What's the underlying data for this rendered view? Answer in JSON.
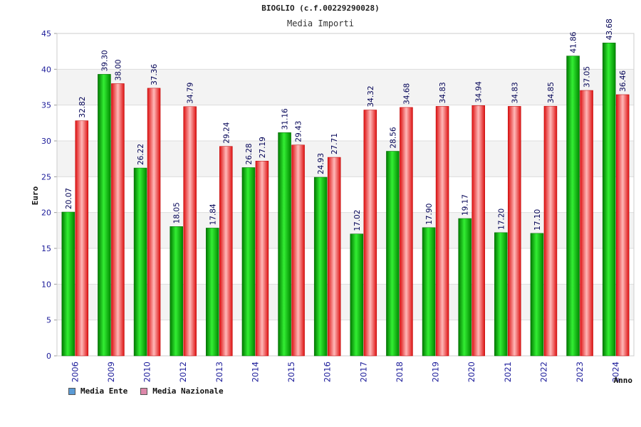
{
  "page_title": "BIOGLIO (c.f.00229290028)",
  "chart_data": {
    "type": "bar",
    "title": "Media Importi",
    "xlabel": "Anno",
    "ylabel": "Euro",
    "ylim": [
      0,
      45
    ],
    "yticks": [
      0,
      5,
      10,
      15,
      20,
      25,
      30,
      35,
      40,
      45
    ],
    "grid": true,
    "legend_position": "bottom-left",
    "categories": [
      "2006",
      "2009",
      "2010",
      "2012",
      "2013",
      "2014",
      "2015",
      "2016",
      "2017",
      "2018",
      "2019",
      "2020",
      "2021",
      "2022",
      "2023",
      "2024"
    ],
    "series": [
      {
        "name": "Media Ente",
        "color": "#00cc00",
        "legend_color": "#5b9bd5",
        "values": [
          20.07,
          39.3,
          26.22,
          18.05,
          17.84,
          26.28,
          31.16,
          24.93,
          17.02,
          28.56,
          17.9,
          19.17,
          17.2,
          17.1,
          41.86,
          43.68
        ],
        "labels": [
          "20.07",
          "39.30",
          "26.22",
          "18.05",
          "17.84",
          "26.28",
          "31.16",
          "24.93",
          "17.02",
          "28.56",
          "17.90",
          "19.17",
          "17.20",
          "17.10",
          "41.86",
          "43.68"
        ]
      },
      {
        "name": "Media Nazionale",
        "color": "#ee2222",
        "legend_color": "#dd88aa",
        "values": [
          32.82,
          38.0,
          37.36,
          34.79,
          29.24,
          27.19,
          29.43,
          27.71,
          34.32,
          34.68,
          34.83,
          34.94,
          34.83,
          34.85,
          37.05,
          36.46
        ],
        "labels": [
          "32.82",
          "38.00",
          "37.36",
          "34.79",
          "29.24",
          "27.19",
          "29.43",
          "27.71",
          "34.32",
          "34.68",
          "34.83",
          "34.94",
          "34.83",
          "34.85",
          "37.05",
          "36.46"
        ]
      }
    ]
  }
}
